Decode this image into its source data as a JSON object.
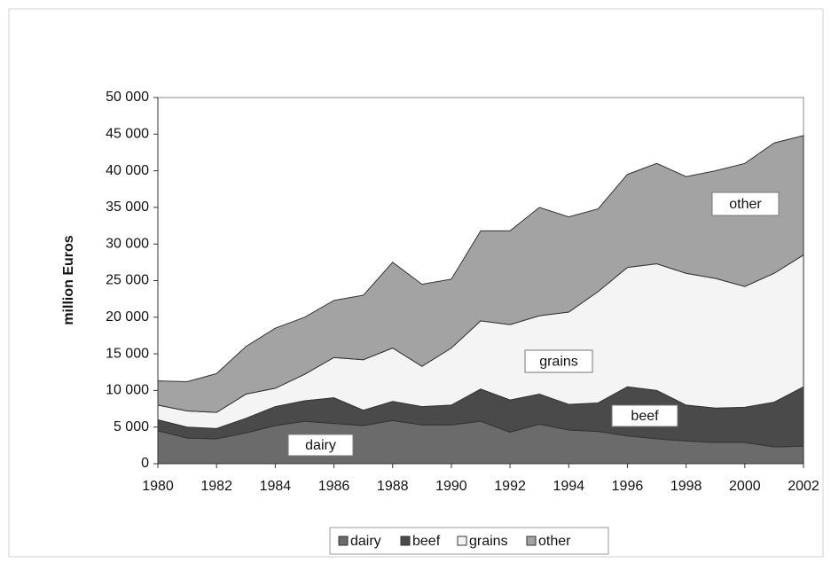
{
  "chart_data": {
    "type": "stacked_area",
    "y_label": "million Euros",
    "x": [
      1980,
      1981,
      1982,
      1983,
      1984,
      1985,
      1986,
      1987,
      1988,
      1989,
      1990,
      1991,
      1992,
      1993,
      1994,
      1995,
      1996,
      1997,
      1998,
      1999,
      2000,
      2001,
      2002
    ],
    "series": [
      {
        "name": "dairy",
        "color": "#6b6b6b",
        "values": [
          4500,
          3500,
          3400,
          4200,
          5200,
          5800,
          5500,
          5200,
          5900,
          5300,
          5300,
          5800,
          4300,
          5400,
          4600,
          4400,
          3800,
          3400,
          3100,
          2900,
          2900,
          2300,
          2400
        ]
      },
      {
        "name": "beef",
        "color": "#4a4a4a",
        "values": [
          1500,
          1500,
          1400,
          2000,
          2600,
          2800,
          3500,
          2100,
          2600,
          2500,
          2700,
          4400,
          4400,
          4100,
          3500,
          3900,
          6700,
          6600,
          4900,
          4700,
          4800,
          6100,
          8100
        ]
      },
      {
        "name": "grains",
        "color": "#f4f4f4",
        "values": [
          2000,
          2200,
          2200,
          3300,
          2500,
          3600,
          5500,
          6900,
          7300,
          5500,
          7800,
          9300,
          10300,
          10700,
          12600,
          15200,
          16300,
          17300,
          18000,
          17700,
          16500,
          17600,
          18000
        ]
      },
      {
        "name": "other",
        "color": "#a3a3a3",
        "values": [
          3300,
          4000,
          5300,
          6500,
          8200,
          7800,
          7800,
          8800,
          11700,
          11200,
          9400,
          12300,
          12800,
          14800,
          13000,
          11300,
          12700,
          13700,
          13200,
          14700,
          16800,
          17800,
          16300
        ]
      }
    ],
    "annotations": [
      "dairy",
      "beef",
      "grains",
      "other"
    ],
    "xlim": [
      1980,
      2002
    ],
    "xticks": [
      1980,
      1982,
      1984,
      1986,
      1988,
      1990,
      1992,
      1994,
      1996,
      1998,
      2000,
      2002
    ],
    "ylim": [
      0,
      50000
    ],
    "yticks": [
      0,
      {
        "value": 5000,
        "label": "5 000"
      },
      {
        "value": 10000,
        "label": "10 000"
      },
      {
        "value": 15000,
        "label": "15 000"
      },
      {
        "value": 20000,
        "label": "20 000"
      },
      {
        "value": 25000,
        "label": "25 000"
      },
      {
        "value": 30000,
        "label": "30 000"
      },
      {
        "value": 35000,
        "label": "35 000"
      },
      {
        "value": 40000,
        "label": "40 000"
      },
      {
        "value": 45000,
        "label": "45 000"
      },
      {
        "value": 50000,
        "label": "50 000"
      }
    ],
    "legend": "bottom"
  }
}
